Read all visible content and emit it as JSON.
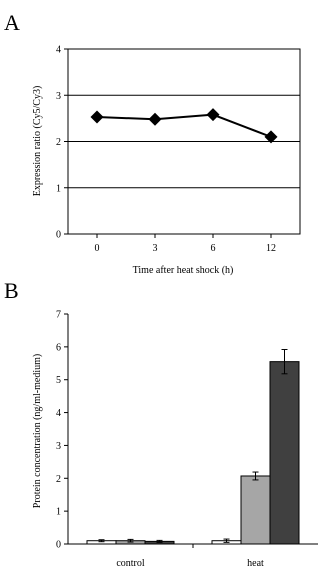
{
  "chart_data": [
    {
      "panel": "A",
      "type": "line",
      "x": [
        "0",
        "3",
        "6",
        "12"
      ],
      "y": [
        2.53,
        2.48,
        2.58,
        2.1
      ],
      "xlabel": "Time after heat shock (h)",
      "ylabel": "Expression ratio (Cy5/Cy3)",
      "ylim": [
        0,
        4
      ],
      "yticks": [
        "0",
        "1",
        "2",
        "3",
        "4"
      ],
      "grid": true,
      "marker": "diamond",
      "color": "#000000"
    },
    {
      "panel": "B",
      "type": "bar",
      "categories": [
        "control",
        "heat"
      ],
      "series": [
        {
          "values": [
            0.1,
            0.1
          ],
          "errors": [
            0.03,
            0.05
          ],
          "color": "#ffffff"
        },
        {
          "values": [
            0.1,
            2.07
          ],
          "errors": [
            0.04,
            0.12
          ],
          "color": "#a6a6a6"
        },
        {
          "values": [
            0.08,
            5.55
          ],
          "errors": [
            0.03,
            0.37
          ],
          "color": "#404040"
        }
      ],
      "xlabel": "",
      "ylabel": "Protein concentration (ng/ml-medium)",
      "ylim": [
        0,
        7
      ],
      "yticks": [
        "0",
        "1",
        "2",
        "3",
        "4",
        "5",
        "6",
        "7"
      ],
      "grid": false
    }
  ]
}
